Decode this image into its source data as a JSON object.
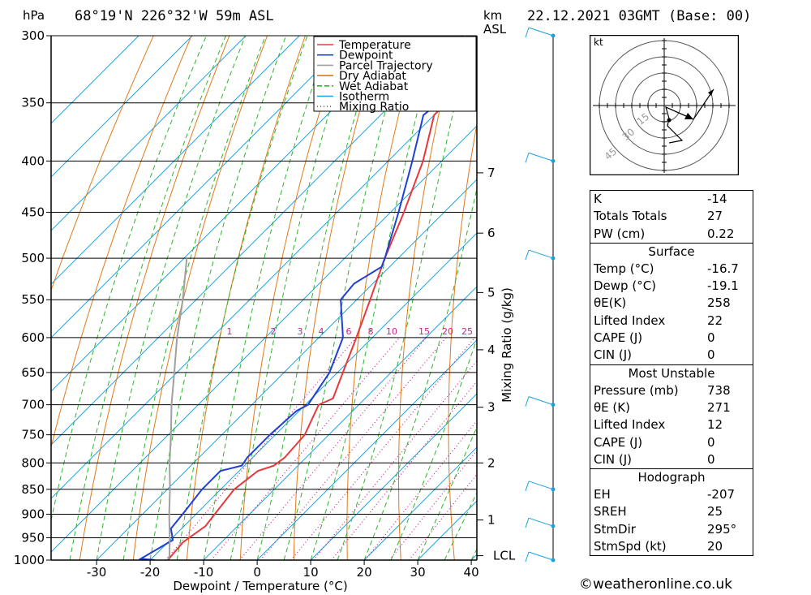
{
  "header": {
    "pressure_unit": "hPa",
    "location": "68°19'N 226°32'W 59m ASL",
    "km_label": "km",
    "asl_label": "ASL",
    "datetime": "22.12.2021 03GMT (Base: 00)"
  },
  "chart_data": {
    "type": "line",
    "chart_kind": "skew-T log-P diagram",
    "xlabel": "Dewpoint / Temperature (°C)",
    "ylabel": "hPa",
    "secondary_ylabel": "Mixing Ratio (g/kg)",
    "x_ticks": [
      -30,
      -20,
      -10,
      0,
      10,
      20,
      30,
      40
    ],
    "pressure_levels": [
      300,
      350,
      400,
      450,
      500,
      550,
      600,
      650,
      700,
      750,
      800,
      850,
      900,
      950,
      1000
    ],
    "km_ticks": [
      {
        "km": "1",
        "p": 912
      },
      {
        "km": "2",
        "p": 800
      },
      {
        "km": "3",
        "p": 704
      },
      {
        "km": "4",
        "p": 617
      },
      {
        "km": "5",
        "p": 541
      },
      {
        "km": "6",
        "p": 472
      },
      {
        "km": "7",
        "p": 411
      }
    ],
    "lcl": {
      "label": "LCL",
      "p": 990
    },
    "mixing_ratio_labels": [
      "1",
      "2",
      "3",
      "4",
      "6",
      "8",
      "10",
      "15",
      "20",
      "25"
    ],
    "legend": [
      {
        "name": "Temperature",
        "color": "#e8383d",
        "style": "solid"
      },
      {
        "name": "Dewpoint",
        "color": "#1f3fd8",
        "style": "solid"
      },
      {
        "name": "Parcel Trajectory",
        "color": "#a0a0a0",
        "style": "solid"
      },
      {
        "name": "Dry Adiabat",
        "color": "#e07a1a",
        "style": "solid"
      },
      {
        "name": "Wet Adiabat",
        "color": "#2db52d",
        "style": "dashed"
      },
      {
        "name": "Isotherm",
        "color": "#1aa0e0",
        "style": "solid"
      },
      {
        "name": "Mixing Ratio",
        "color": "#d0208a",
        "style": "dotted"
      }
    ],
    "series": [
      {
        "name": "Temperature",
        "points": [
          [
            1000,
            -16.7
          ],
          [
            960,
            -17.2
          ],
          [
            925,
            -16.0
          ],
          [
            900,
            -16.5
          ],
          [
            850,
            -17.5
          ],
          [
            815,
            -16.5
          ],
          [
            805,
            -14.5
          ],
          [
            790,
            -14.0
          ],
          [
            750,
            -14.5
          ],
          [
            700,
            -17.5
          ],
          [
            690,
            -16.0
          ],
          [
            650,
            -19.0
          ],
          [
            600,
            -23.0
          ],
          [
            550,
            -27.5
          ],
          [
            500,
            -32.5
          ],
          [
            450,
            -37.5
          ],
          [
            400,
            -43.5
          ],
          [
            360,
            -50.0
          ],
          [
            340,
            -50.0
          ],
          [
            330,
            -50.5
          ],
          [
            300,
            -55.0
          ]
        ]
      },
      {
        "name": "Dewpoint",
        "points": [
          [
            1000,
            -19.1
          ],
          [
            997,
            -22.0
          ],
          [
            955,
            -19.5
          ],
          [
            930,
            -22.0
          ],
          [
            900,
            -22.5
          ],
          [
            850,
            -23.5
          ],
          [
            815,
            -23.5
          ],
          [
            805,
            -20.5
          ],
          [
            790,
            -21.0
          ],
          [
            750,
            -21.0
          ],
          [
            710,
            -20.5
          ],
          [
            700,
            -19.5
          ],
          [
            650,
            -21.5
          ],
          [
            600,
            -25.5
          ],
          [
            550,
            -33.0
          ],
          [
            530,
            -33.5
          ],
          [
            510,
            -31.5
          ],
          [
            500,
            -32.5
          ],
          [
            450,
            -38.5
          ],
          [
            400,
            -45.5
          ],
          [
            360,
            -52.0
          ],
          [
            340,
            -51.0
          ],
          [
            320,
            -55.0
          ],
          [
            300,
            -59.0
          ]
        ]
      },
      {
        "name": "Parcel Trajectory",
        "points": [
          [
            1000,
            -16.7
          ],
          [
            990,
            -17.2
          ],
          [
            950,
            -20.5
          ],
          [
            900,
            -25.0
          ],
          [
            850,
            -29.5
          ],
          [
            800,
            -34.5
          ],
          [
            750,
            -39.5
          ],
          [
            700,
            -45.0
          ],
          [
            650,
            -50.5
          ],
          [
            600,
            -56.5
          ],
          [
            550,
            -62.5
          ],
          [
            500,
            -69.5
          ]
        ]
      }
    ],
    "wind_barbs": [
      {
        "p": 300
      },
      {
        "p": 400
      },
      {
        "p": 500
      },
      {
        "p": 700
      },
      {
        "p": 850
      },
      {
        "p": 925
      },
      {
        "p": 1000
      }
    ]
  },
  "hodograph": {
    "unit_label": "kt",
    "rings": [
      "15",
      "30",
      "45"
    ]
  },
  "indices": {
    "k_label": "K",
    "k_value": "-14",
    "tt_label": "Totals Totals",
    "tt_value": "27",
    "pw_label": "PW (cm)",
    "pw_value": "0.22"
  },
  "surface": {
    "title": "Surface",
    "rows": [
      {
        "label": "Temp (°C)",
        "value": "-16.7"
      },
      {
        "label": "Dewp (°C)",
        "value": "-19.1"
      },
      {
        "label": "θE(K)",
        "value": "258"
      },
      {
        "label": "Lifted Index",
        "value": "22"
      },
      {
        "label": "CAPE (J)",
        "value": "0"
      },
      {
        "label": "CIN (J)",
        "value": "0"
      }
    ]
  },
  "most_unstable": {
    "title": "Most Unstable",
    "rows": [
      {
        "label": "Pressure (mb)",
        "value": "738"
      },
      {
        "label": "θE (K)",
        "value": "271"
      },
      {
        "label": "Lifted Index",
        "value": "12"
      },
      {
        "label": "CAPE (J)",
        "value": "0"
      },
      {
        "label": "CIN (J)",
        "value": "0"
      }
    ]
  },
  "hodograph_table": {
    "title": "Hodograph",
    "rows": [
      {
        "label": "EH",
        "value": "-207"
      },
      {
        "label": "SREH",
        "value": "25"
      },
      {
        "label": "StmDir",
        "value": "295°"
      },
      {
        "label": "StmSpd (kt)",
        "value": "20"
      }
    ]
  },
  "footer": {
    "text": "©weatheronline.co.uk"
  }
}
